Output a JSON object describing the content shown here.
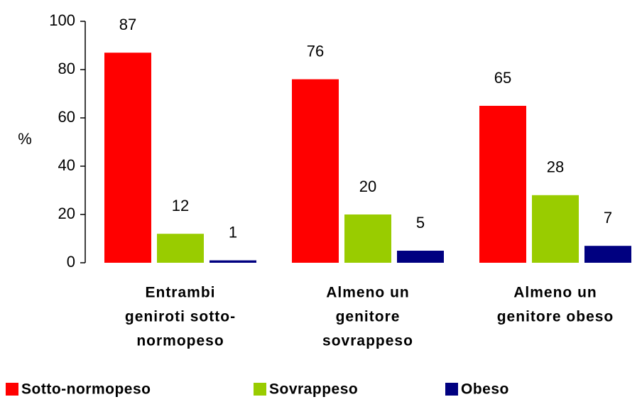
{
  "chart_data": {
    "type": "bar",
    "y_label": "%",
    "categories": [
      [
        "Entrambi",
        "geniroti sotto-",
        "normopeso"
      ],
      [
        "Almeno un",
        "genitore",
        "sovrappeso"
      ],
      [
        "Almeno un",
        "genitore obeso"
      ]
    ],
    "series": [
      {
        "name": "Sotto-normopeso",
        "color": "#ff0000",
        "values": [
          87,
          76,
          65
        ]
      },
      {
        "name": "Sovrappeso",
        "color": "#99cc00",
        "values": [
          12,
          20,
          28
        ]
      },
      {
        "name": "Obeso",
        "color": "#000080",
        "values": [
          1,
          5,
          7
        ]
      }
    ],
    "ylim": [
      0,
      100
    ],
    "yticks": [
      0,
      20,
      40,
      60,
      80,
      100
    ]
  }
}
